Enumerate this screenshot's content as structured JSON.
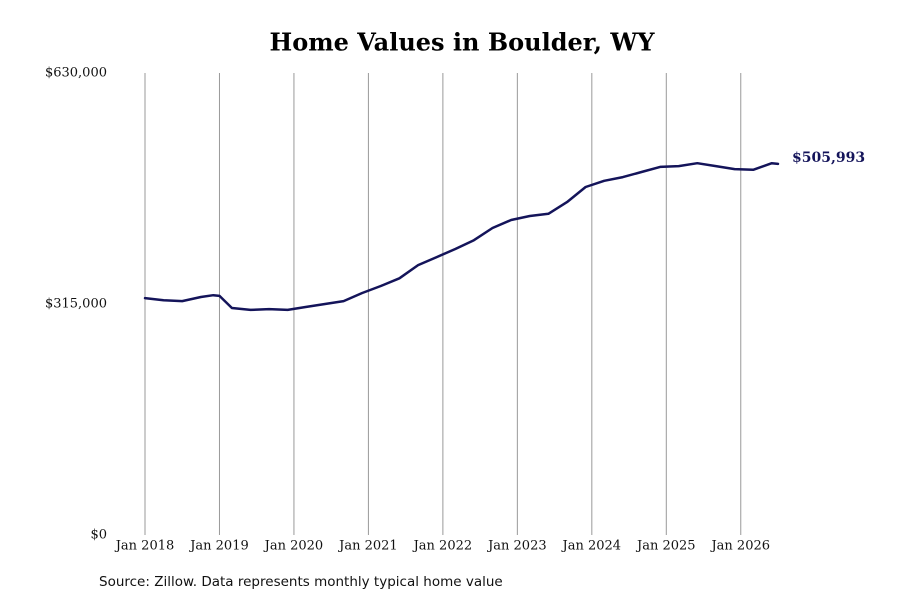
{
  "chart_data": {
    "type": "line",
    "title": "Home Values in Boulder, WY",
    "source": "Source: Zillow. Data represents monthly typical home value",
    "color": "#14145a",
    "grid": true,
    "x": [
      "2018-01",
      "2018-04",
      "2018-07",
      "2018-10",
      "2018-12",
      "2019-01",
      "2019-03",
      "2019-06",
      "2019-09",
      "2019-12",
      "2020-03",
      "2020-06",
      "2020-09",
      "2020-12",
      "2021-03",
      "2021-06",
      "2021-09",
      "2021-12",
      "2022-03",
      "2022-06",
      "2022-09",
      "2022-12",
      "2023-03",
      "2023-06",
      "2023-09",
      "2023-12",
      "2024-03",
      "2024-06",
      "2024-09",
      "2024-12",
      "2025-03",
      "2025-06",
      "2025-09",
      "2025-12",
      "2026-03",
      "2026-06",
      "2026-07"
    ],
    "values": [
      323000,
      320000,
      319000,
      324500,
      327000,
      326000,
      309500,
      307000,
      308000,
      307000,
      311000,
      315000,
      319000,
      330000,
      339500,
      350000,
      368000,
      379000,
      390000,
      402000,
      418600,
      429500,
      435000,
      438000,
      454000,
      474500,
      483000,
      488000,
      495000,
      502000,
      503000,
      507000,
      503000,
      499000,
      498000,
      507000,
      505993
    ],
    "value_labels": [
      null,
      null,
      null,
      null,
      null,
      null,
      null,
      null,
      null,
      null,
      null,
      null,
      null,
      null,
      null,
      null,
      null,
      null,
      null,
      null,
      null,
      null,
      null,
      null,
      null,
      null,
      null,
      null,
      null,
      null,
      null,
      null,
      null,
      null,
      null,
      null,
      "$505,993"
    ],
    "xlim": [
      "2018-01",
      "2026-07"
    ],
    "xticks": [
      {
        "value": "2018-01",
        "label": "Jan 2018"
      },
      {
        "value": "2019-01",
        "label": "Jan 2019"
      },
      {
        "value": "2020-01",
        "label": "Jan 2020"
      },
      {
        "value": "2021-01",
        "label": "Jan 2021"
      },
      {
        "value": "2022-01",
        "label": "Jan 2022"
      },
      {
        "value": "2023-01",
        "label": "Jan 2023"
      },
      {
        "value": "2024-01",
        "label": "Jan 2024"
      },
      {
        "value": "2025-01",
        "label": "Jan 2025"
      },
      {
        "value": "2026-01",
        "label": "Jan 2026"
      }
    ],
    "ylim": [
      0,
      630000
    ],
    "yticks": [
      {
        "value": 0,
        "label": "$0"
      },
      {
        "value": 315000,
        "label": "$315,000"
      },
      {
        "value": 630000,
        "label": "$630,000"
      }
    ]
  }
}
